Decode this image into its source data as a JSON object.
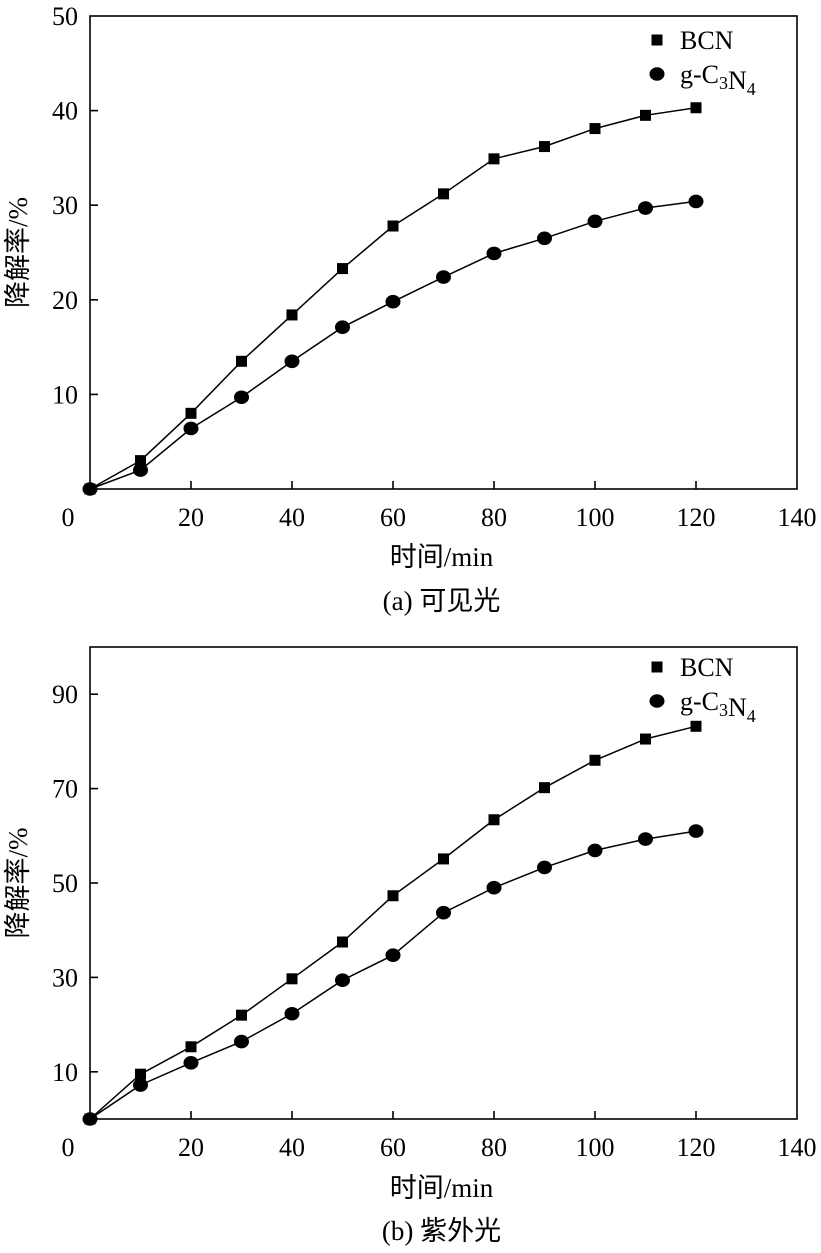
{
  "chart_data": [
    {
      "type": "line",
      "caption": "(a) 可见光",
      "xlabel": "时间/min",
      "ylabel": "降解率/%",
      "xlim": [
        0,
        140
      ],
      "ylim": [
        0,
        50
      ],
      "xticks": [
        0,
        20,
        40,
        60,
        80,
        100,
        120,
        140
      ],
      "yticks": [
        10,
        20,
        30,
        40,
        50
      ],
      "grid": false,
      "legend_position": "top-right",
      "series": [
        {
          "name": "BCN",
          "marker": "square",
          "x": [
            0,
            10,
            20,
            30,
            40,
            50,
            60,
            70,
            80,
            90,
            100,
            110,
            120
          ],
          "y": [
            0,
            3,
            8,
            13.5,
            18.4,
            23.3,
            27.8,
            31.2,
            34.9,
            36.2,
            38.1,
            39.5,
            40.3
          ]
        },
        {
          "name": "g-C3N4",
          "marker": "circle",
          "x": [
            0,
            10,
            20,
            30,
            40,
            50,
            60,
            70,
            80,
            90,
            100,
            110,
            120
          ],
          "y": [
            0,
            2,
            6.4,
            9.7,
            13.5,
            17.1,
            19.8,
            22.4,
            24.9,
            26.5,
            28.3,
            29.7,
            30.4
          ]
        }
      ]
    },
    {
      "type": "line",
      "caption": "(b) 紫外光",
      "xlabel": "时间/min",
      "ylabel": "降解率/%",
      "xlim": [
        0,
        140
      ],
      "ylim": [
        0,
        100
      ],
      "xticks": [
        0,
        20,
        40,
        60,
        80,
        100,
        120,
        140
      ],
      "yticks": [
        10,
        30,
        50,
        70,
        90
      ],
      "grid": false,
      "legend_position": "top-right",
      "series": [
        {
          "name": "BCN",
          "marker": "square",
          "x": [
            0,
            10,
            20,
            30,
            40,
            50,
            60,
            70,
            80,
            90,
            100,
            110,
            120
          ],
          "y": [
            0,
            9.5,
            15.3,
            22,
            29.7,
            37.5,
            47.3,
            55.1,
            63.4,
            70.2,
            76,
            80.5,
            83.2
          ]
        },
        {
          "name": "g-C3N4",
          "marker": "circle",
          "x": [
            0,
            10,
            20,
            30,
            40,
            50,
            60,
            70,
            80,
            90,
            100,
            110,
            120
          ],
          "y": [
            0,
            7.2,
            11.9,
            16.4,
            22.3,
            29.4,
            34.7,
            43.7,
            49,
            53.3,
            56.9,
            59.3,
            61
          ]
        }
      ]
    }
  ]
}
